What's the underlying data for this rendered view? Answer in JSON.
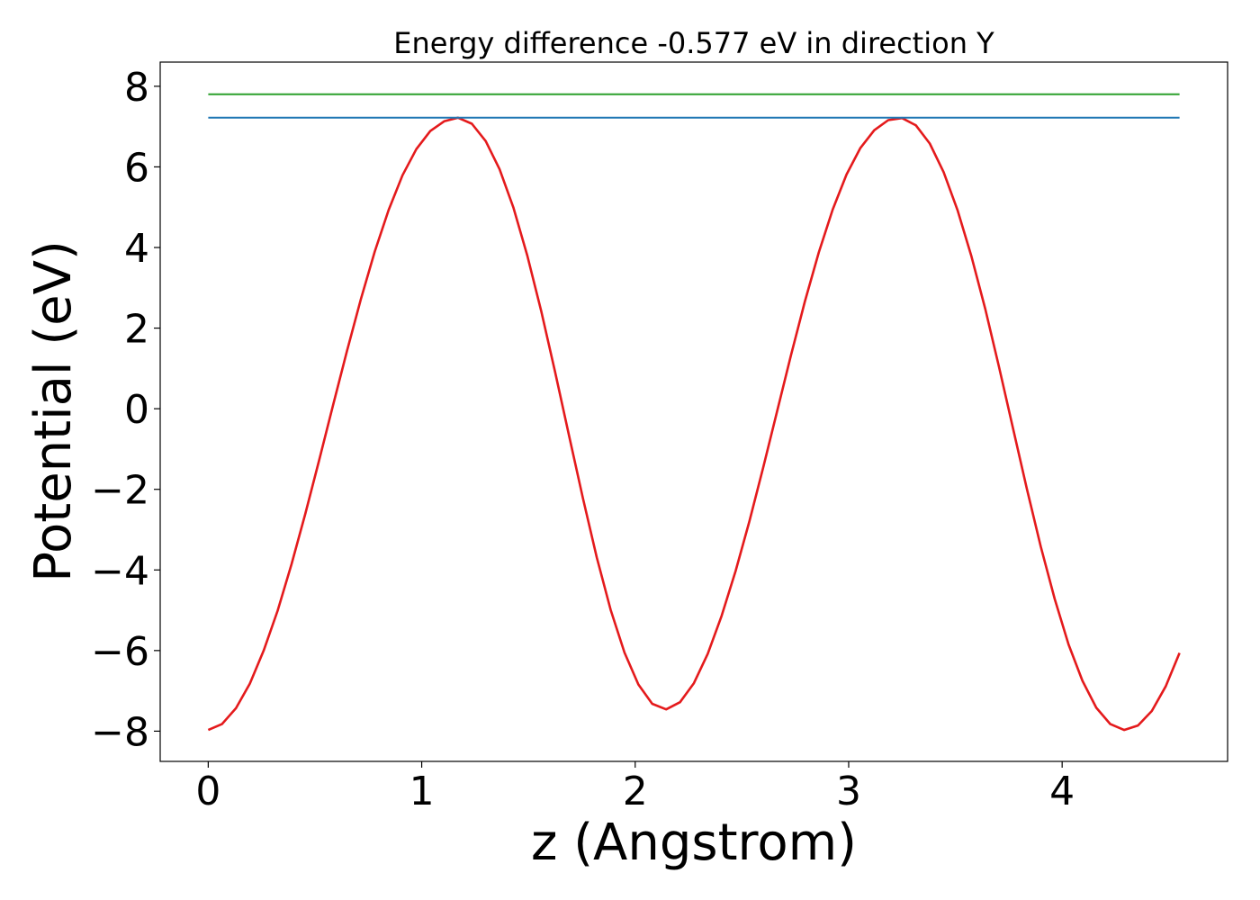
{
  "chart_data": {
    "type": "line",
    "title": "Energy difference -0.577 eV in direction Y",
    "xlabel": "z (Angstrom)",
    "ylabel": "Potential (eV)",
    "xlim": [
      -0.225,
      4.775
    ],
    "ylim": [
      -8.75,
      8.6
    ],
    "xticks": [
      0,
      1,
      2,
      3,
      4
    ],
    "xtick_labels": [
      "0",
      "1",
      "2",
      "3",
      "4"
    ],
    "yticks": [
      8,
      6,
      4,
      2,
      0,
      -2,
      -4,
      -6,
      -8
    ],
    "ytick_labels": [
      "8",
      "6",
      "4",
      "2",
      "0",
      "−2",
      "−4",
      "−6",
      "−8"
    ],
    "grid": false,
    "legend": "none",
    "series": [
      {
        "color": "#e41a1c",
        "x": [
          0.0,
          0.065,
          0.13,
          0.195,
          0.26,
          0.325,
          0.39,
          0.455,
          0.52,
          0.585,
          0.65,
          0.715,
          0.78,
          0.845,
          0.91,
          0.975,
          1.04,
          1.105,
          1.17,
          1.235,
          1.3,
          1.365,
          1.43,
          1.495,
          1.56,
          1.625,
          1.69,
          1.755,
          1.82,
          1.885,
          1.95,
          2.015,
          2.08,
          2.145,
          2.21,
          2.275,
          2.34,
          2.405,
          2.47,
          2.535,
          2.6,
          2.665,
          2.73,
          2.795,
          2.86,
          2.925,
          2.99,
          3.055,
          3.12,
          3.185,
          3.25,
          3.315,
          3.38,
          3.445,
          3.51,
          3.575,
          3.64,
          3.705,
          3.77,
          3.835,
          3.9,
          3.965,
          4.03,
          4.095,
          4.16,
          4.225,
          4.29,
          4.355,
          4.42,
          4.485,
          4.55
        ],
        "y": [
          -7.97,
          -7.82,
          -7.43,
          -6.82,
          -6.0,
          -5.01,
          -3.86,
          -2.6,
          -1.27,
          0.09,
          1.43,
          2.72,
          3.9,
          4.93,
          5.79,
          6.44,
          6.89,
          7.13,
          7.22,
          7.07,
          6.64,
          5.94,
          4.98,
          3.79,
          2.42,
          0.91,
          -0.66,
          -2.22,
          -3.69,
          -4.99,
          -6.05,
          -6.84,
          -7.32,
          -7.46,
          -7.28,
          -6.81,
          -6.08,
          -5.14,
          -4.03,
          -2.79,
          -1.45,
          -0.06,
          1.33,
          2.66,
          3.88,
          4.94,
          5.81,
          6.47,
          6.91,
          7.16,
          7.21,
          7.03,
          6.58,
          5.87,
          4.93,
          3.78,
          2.47,
          1.02,
          -0.49,
          -1.99,
          -3.42,
          -4.72,
          -5.85,
          -6.75,
          -7.42,
          -7.82,
          -7.97,
          -7.86,
          -7.5,
          -6.89,
          -6.06
        ],
        "y_override_note_removed": true
      },
      {
        "color": "#2ca02c",
        "x": [
          0.0,
          4.55
        ],
        "y": [
          7.8,
          7.8
        ]
      },
      {
        "color": "#1f77b4",
        "x": [
          0.0,
          4.55
        ],
        "y": [
          7.22,
          7.22
        ]
      }
    ]
  }
}
